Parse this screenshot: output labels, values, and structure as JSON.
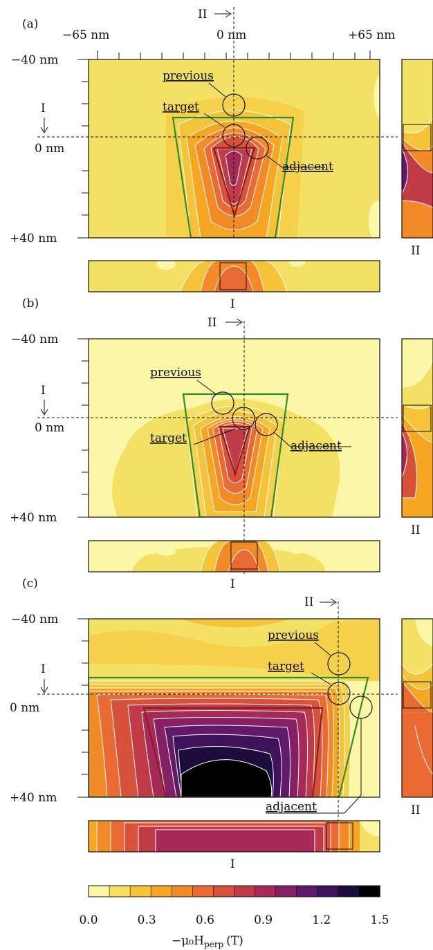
{
  "panels": [
    {
      "label": "(a)",
      "previous": "previous",
      "target": "target",
      "adjacent": "adjacent",
      "sec_I": "I",
      "sec_II": "II"
    },
    {
      "label": "(b)",
      "previous": "previous",
      "target": "target",
      "adjacent": "adjacent",
      "sec_I": "I",
      "sec_II": "II"
    },
    {
      "label": "(c)",
      "previous": "previous",
      "target": "target",
      "adjacent": "adjacent",
      "sec_I": "I",
      "sec_II": "II"
    }
  ],
  "axis": {
    "x_ticks": [
      "−65 nm",
      "0 nm",
      "+65 nm"
    ],
    "y_ticks": [
      "−40 nm",
      "0 nm",
      "+40 nm"
    ]
  },
  "colorbar": {
    "ticks": [
      "0.0",
      "0.3",
      "0.6",
      "0.9",
      "1.2",
      "1.5"
    ],
    "label": "−μ₀H",
    "label_sub": "perp",
    "label_unit": "(T)",
    "colors": [
      "#fbf7a6",
      "#f6e05e",
      "#f5c339",
      "#f5a623",
      "#f18a27",
      "#e96a33",
      "#d8523b",
      "#c13a48",
      "#a52a57",
      "#862065",
      "#611a6a",
      "#3f135c",
      "#1e0c3c",
      "#000000"
    ]
  }
}
